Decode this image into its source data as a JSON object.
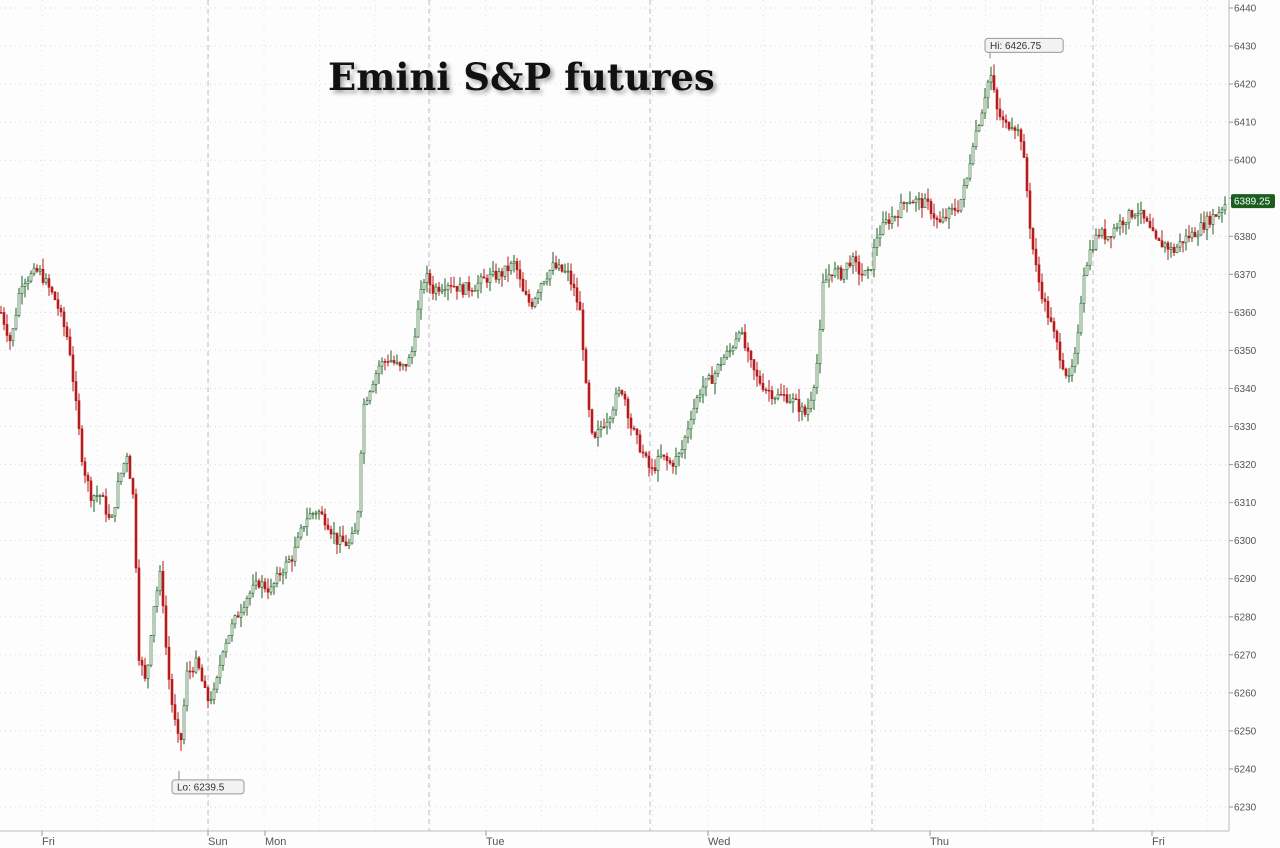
{
  "chart_data": {
    "type": "candlestick",
    "title": "Emini S&P futures",
    "xlabel": "",
    "ylabel": "",
    "ylim": [
      6222,
      6442
    ],
    "y_ticks": [
      6230,
      6240,
      6250,
      6260,
      6270,
      6280,
      6290,
      6300,
      6310,
      6320,
      6330,
      6340,
      6350,
      6360,
      6370,
      6380,
      6390,
      6400,
      6410,
      6420,
      6430,
      6440
    ],
    "x_tick_labels": [
      {
        "label": "Fri",
        "t": 42
      },
      {
        "label": "Sun",
        "t": 208
      },
      {
        "label": "Mon",
        "t": 265
      },
      {
        "label": "Tue",
        "t": 486
      },
      {
        "label": "Wed",
        "t": 708
      },
      {
        "label": "Thu",
        "t": 930
      },
      {
        "label": "Fri",
        "t": 1152
      }
    ],
    "session_dividers": [
      208,
      429,
      650,
      872,
      1093
    ],
    "grid": true,
    "last_price": {
      "label": "6389.25",
      "value": 6389.25
    },
    "annotations": [
      {
        "label": "Hi: 6426.75",
        "t": 990,
        "value": 6426.75,
        "position": "above"
      },
      {
        "label": "Lo: 6239.5",
        "t": 179,
        "value": 6239.5,
        "position": "below"
      }
    ],
    "colors": {
      "up": "#1b5e20",
      "down": "#b71c1c",
      "last_price_bg": "#1b5e20"
    },
    "price_path": [
      [
        0,
        6360
      ],
      [
        10,
        6352
      ],
      [
        20,
        6368
      ],
      [
        38,
        6371
      ],
      [
        55,
        6363
      ],
      [
        68,
        6352
      ],
      [
        76,
        6333
      ],
      [
        82,
        6320
      ],
      [
        90,
        6312
      ],
      [
        100,
        6312
      ],
      [
        110,
        6304
      ],
      [
        118,
        6316
      ],
      [
        126,
        6323
      ],
      [
        133,
        6310
      ],
      [
        138,
        6270
      ],
      [
        145,
        6262
      ],
      [
        152,
        6282
      ],
      [
        160,
        6292
      ],
      [
        166,
        6268
      ],
      [
        172,
        6255
      ],
      [
        179,
        6245
      ],
      [
        186,
        6265
      ],
      [
        196,
        6268
      ],
      [
        206,
        6258
      ],
      [
        214,
        6260
      ],
      [
        222,
        6272
      ],
      [
        232,
        6278
      ],
      [
        245,
        6285
      ],
      [
        258,
        6289
      ],
      [
        270,
        6287
      ],
      [
        280,
        6292
      ],
      [
        292,
        6296
      ],
      [
        305,
        6306
      ],
      [
        316,
        6308
      ],
      [
        326,
        6305
      ],
      [
        336,
        6300
      ],
      [
        348,
        6299
      ],
      [
        356,
        6303
      ],
      [
        362,
        6335
      ],
      [
        370,
        6341
      ],
      [
        378,
        6346
      ],
      [
        388,
        6348
      ],
      [
        400,
        6345
      ],
      [
        410,
        6348
      ],
      [
        418,
        6362
      ],
      [
        424,
        6370
      ],
      [
        432,
        6366
      ],
      [
        448,
        6368
      ],
      [
        460,
        6366
      ],
      [
        474,
        6367
      ],
      [
        486,
        6369
      ],
      [
        500,
        6370
      ],
      [
        514,
        6373
      ],
      [
        522,
        6365
      ],
      [
        530,
        6362
      ],
      [
        540,
        6368
      ],
      [
        552,
        6372
      ],
      [
        560,
        6371
      ],
      [
        567,
        6370
      ],
      [
        574,
        6365
      ],
      [
        580,
        6359
      ],
      [
        585,
        6340
      ],
      [
        592,
        6325
      ],
      [
        600,
        6330
      ],
      [
        608,
        6333
      ],
      [
        616,
        6338
      ],
      [
        622,
        6340
      ],
      [
        630,
        6330
      ],
      [
        640,
        6324
      ],
      [
        650,
        6318
      ],
      [
        660,
        6322
      ],
      [
        670,
        6320
      ],
      [
        680,
        6323
      ],
      [
        690,
        6333
      ],
      [
        700,
        6340
      ],
      [
        712,
        6343
      ],
      [
        722,
        6348
      ],
      [
        730,
        6350
      ],
      [
        738,
        6356
      ],
      [
        746,
        6349
      ],
      [
        755,
        6343
      ],
      [
        765,
        6340
      ],
      [
        775,
        6338
      ],
      [
        785,
        6338
      ],
      [
        795,
        6336
      ],
      [
        805,
        6333
      ],
      [
        812,
        6340
      ],
      [
        818,
        6350
      ],
      [
        822,
        6367
      ],
      [
        830,
        6371
      ],
      [
        840,
        6370
      ],
      [
        850,
        6374
      ],
      [
        860,
        6370
      ],
      [
        868,
        6370
      ],
      [
        876,
        6380
      ],
      [
        886,
        6384
      ],
      [
        896,
        6386
      ],
      [
        906,
        6390
      ],
      [
        918,
        6389
      ],
      [
        928,
        6388
      ],
      [
        938,
        6383
      ],
      [
        948,
        6386
      ],
      [
        958,
        6388
      ],
      [
        966,
        6395
      ],
      [
        972,
        6405
      ],
      [
        980,
        6412
      ],
      [
        986,
        6420
      ],
      [
        990,
        6422
      ],
      [
        996,
        6413
      ],
      [
        1004,
        6409
      ],
      [
        1012,
        6410
      ],
      [
        1020,
        6406
      ],
      [
        1025,
        6395
      ],
      [
        1030,
        6380
      ],
      [
        1036,
        6370
      ],
      [
        1044,
        6362
      ],
      [
        1052,
        6355
      ],
      [
        1060,
        6348
      ],
      [
        1068,
        6342
      ],
      [
        1076,
        6350
      ],
      [
        1082,
        6370
      ],
      [
        1090,
        6377
      ],
      [
        1098,
        6381
      ],
      [
        1106,
        6380
      ],
      [
        1116,
        6383
      ],
      [
        1126,
        6385
      ],
      [
        1136,
        6387
      ],
      [
        1146,
        6383
      ],
      [
        1156,
        6378
      ],
      [
        1164,
        6378
      ],
      [
        1172,
        6376
      ],
      [
        1182,
        6379
      ],
      [
        1194,
        6381
      ],
      [
        1206,
        6384
      ],
      [
        1216,
        6386
      ],
      [
        1226,
        6389.25
      ]
    ]
  }
}
